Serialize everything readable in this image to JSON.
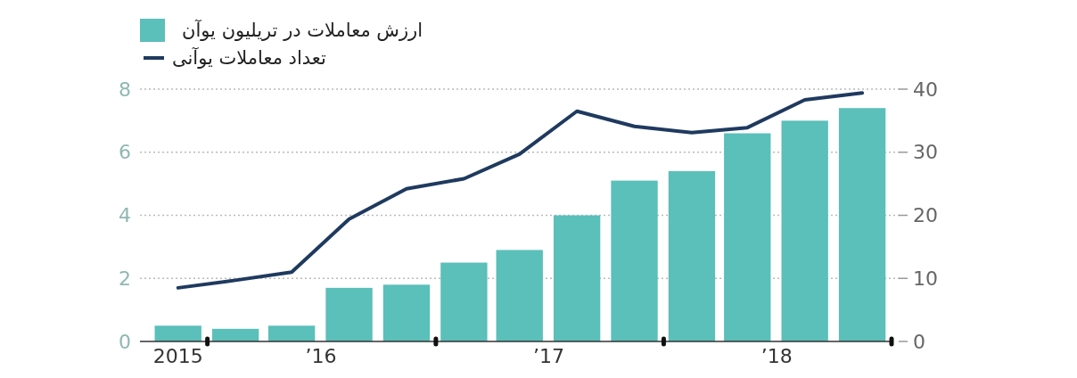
{
  "chart_data": {
    "type": "bar",
    "x": [
      "2015-11-15",
      "2016-02-15",
      "2016-05-15",
      "2016-08-15",
      "2016-11-15",
      "2017-02-15",
      "2017-05-15",
      "2017-08-15",
      "2017-11-15",
      "2018-02-15",
      "2018-05-15",
      "2018-08-15",
      "2018-11-15"
    ],
    "series": [
      {
        "name": "ارزش معاملات در تریلیون یوآن",
        "color": "#5bbfba",
        "values": [
          0.5,
          0.4,
          0.5,
          1.7,
          1.8,
          2.5,
          2.9,
          4.0,
          5.1,
          5.4,
          6.6,
          7.0,
          7.4
        ]
      },
      {
        "name": "تعداد معاملات یوآنی",
        "type": "line",
        "axis": "y2",
        "color": "#1f3a5f",
        "values": [
          8.5,
          9.7,
          11,
          19.4,
          24.2,
          25.8,
          29.7,
          36.5,
          34.1,
          33.1,
          33.9,
          38.3,
          39.4
        ]
      }
    ],
    "xlim": [
      "2015-09-15",
      "2019-01-01"
    ],
    "xticks": [
      {
        "value": "2015-11-15",
        "label": "2015"
      },
      {
        "value": "2016-01-01",
        "label": null
      },
      {
        "value": "2016-07-01",
        "label": "’16"
      },
      {
        "value": "2017-01-01",
        "label": null
      },
      {
        "value": "2017-07-01",
        "label": "’17"
      },
      {
        "value": "2018-01-01",
        "label": null
      },
      {
        "value": "2018-07-01",
        "label": "’18"
      },
      {
        "value": "2019-01-01",
        "label": null
      }
    ],
    "ylim": [
      0,
      8
    ],
    "yticks": [
      0,
      2,
      4,
      6,
      8
    ],
    "y2lim": [
      0,
      40
    ],
    "y2ticks": [
      0,
      10,
      20,
      30,
      40
    ],
    "grid": "y",
    "legend": "top left"
  }
}
